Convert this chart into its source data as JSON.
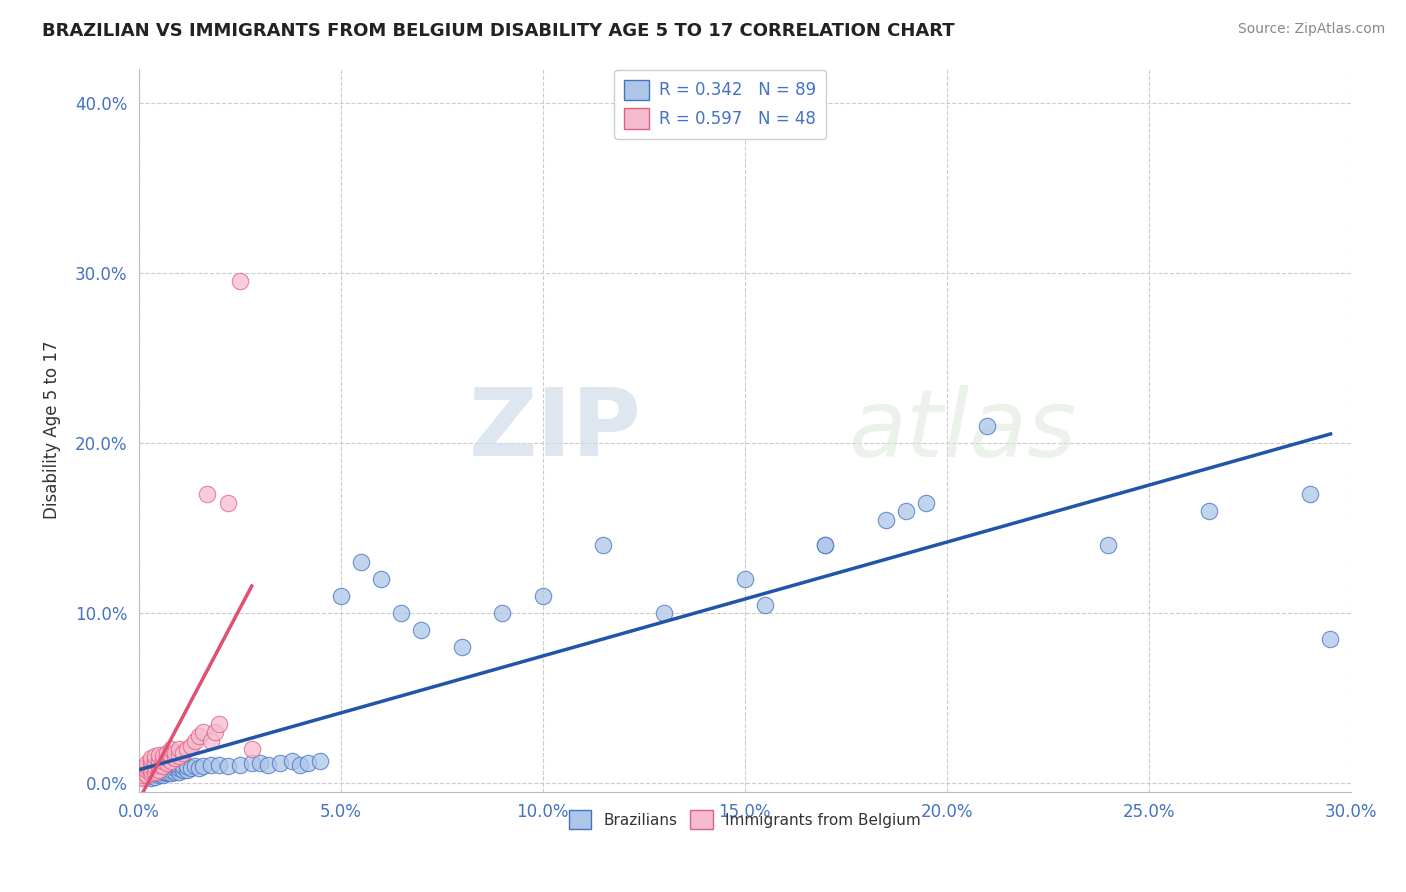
{
  "title": "BRAZILIAN VS IMMIGRANTS FROM BELGIUM DISABILITY AGE 5 TO 17 CORRELATION CHART",
  "source": "Source: ZipAtlas.com",
  "xlim": [
    0.0,
    0.3
  ],
  "ylim": [
    -0.005,
    0.42
  ],
  "watermark_zip": "ZIP",
  "watermark_atlas": "atlas",
  "legend_label_brazil": "R = 0.342   N = 89",
  "legend_label_belgium": "R = 0.597   N = 48",
  "brazil_dot_color": "#adc6e8",
  "brazil_dot_edge": "#4472c4",
  "belgium_dot_color": "#f5bcd0",
  "belgium_dot_edge": "#e06080",
  "trend_brazil_color": "#2255aa",
  "trend_belgium_color": "#e05070",
  "grid_color": "#cccccc",
  "background_color": "#ffffff",
  "title_color": "#222222",
  "axis_label_color": "#4472c4",
  "source_color": "#888888",
  "ylabel": "Disability Age 5 to 17",
  "brazil_x": [
    0.0005,
    0.001,
    0.001,
    0.001,
    0.0015,
    0.002,
    0.002,
    0.002,
    0.002,
    0.002,
    0.003,
    0.003,
    0.003,
    0.003,
    0.003,
    0.003,
    0.004,
    0.004,
    0.004,
    0.004,
    0.004,
    0.004,
    0.005,
    0.005,
    0.005,
    0.005,
    0.005,
    0.005,
    0.006,
    0.006,
    0.006,
    0.006,
    0.006,
    0.007,
    0.007,
    0.007,
    0.007,
    0.008,
    0.008,
    0.008,
    0.008,
    0.009,
    0.009,
    0.009,
    0.01,
    0.01,
    0.01,
    0.011,
    0.011,
    0.012,
    0.012,
    0.013,
    0.014,
    0.015,
    0.016,
    0.018,
    0.02,
    0.022,
    0.025,
    0.028,
    0.03,
    0.032,
    0.035,
    0.038,
    0.04,
    0.042,
    0.045,
    0.05,
    0.055,
    0.06,
    0.065,
    0.07,
    0.08,
    0.09,
    0.1,
    0.115,
    0.13,
    0.15,
    0.17,
    0.19,
    0.21,
    0.24,
    0.265,
    0.29,
    0.295,
    0.17,
    0.195,
    0.155,
    0.185
  ],
  "brazil_y": [
    0.005,
    0.004,
    0.006,
    0.008,
    0.005,
    0.004,
    0.006,
    0.007,
    0.009,
    0.01,
    0.003,
    0.005,
    0.006,
    0.008,
    0.009,
    0.011,
    0.004,
    0.006,
    0.007,
    0.009,
    0.01,
    0.012,
    0.005,
    0.006,
    0.008,
    0.009,
    0.011,
    0.012,
    0.005,
    0.007,
    0.008,
    0.01,
    0.012,
    0.006,
    0.007,
    0.009,
    0.011,
    0.006,
    0.008,
    0.01,
    0.012,
    0.007,
    0.009,
    0.011,
    0.007,
    0.009,
    0.011,
    0.008,
    0.01,
    0.008,
    0.01,
    0.009,
    0.01,
    0.009,
    0.01,
    0.011,
    0.011,
    0.01,
    0.011,
    0.012,
    0.012,
    0.011,
    0.012,
    0.013,
    0.011,
    0.012,
    0.013,
    0.11,
    0.13,
    0.12,
    0.1,
    0.09,
    0.08,
    0.1,
    0.11,
    0.14,
    0.1,
    0.12,
    0.14,
    0.16,
    0.21,
    0.14,
    0.16,
    0.17,
    0.085,
    0.14,
    0.165,
    0.105,
    0.155
  ],
  "belgium_x": [
    0.0005,
    0.001,
    0.001,
    0.001,
    0.001,
    0.002,
    0.002,
    0.002,
    0.002,
    0.003,
    0.003,
    0.003,
    0.003,
    0.003,
    0.004,
    0.004,
    0.004,
    0.004,
    0.005,
    0.005,
    0.005,
    0.005,
    0.006,
    0.006,
    0.006,
    0.007,
    0.007,
    0.007,
    0.008,
    0.008,
    0.008,
    0.009,
    0.009,
    0.01,
    0.01,
    0.011,
    0.012,
    0.013,
    0.014,
    0.015,
    0.016,
    0.017,
    0.018,
    0.019,
    0.02,
    0.022,
    0.025,
    0.028
  ],
  "belgium_y": [
    0.004,
    0.003,
    0.005,
    0.007,
    0.009,
    0.005,
    0.008,
    0.01,
    0.012,
    0.006,
    0.008,
    0.01,
    0.013,
    0.015,
    0.007,
    0.01,
    0.013,
    0.016,
    0.008,
    0.011,
    0.014,
    0.017,
    0.01,
    0.013,
    0.016,
    0.012,
    0.015,
    0.018,
    0.013,
    0.016,
    0.02,
    0.015,
    0.018,
    0.016,
    0.02,
    0.018,
    0.02,
    0.022,
    0.025,
    0.028,
    0.03,
    0.17,
    0.025,
    0.03,
    0.035,
    0.165,
    0.295,
    0.02
  ]
}
